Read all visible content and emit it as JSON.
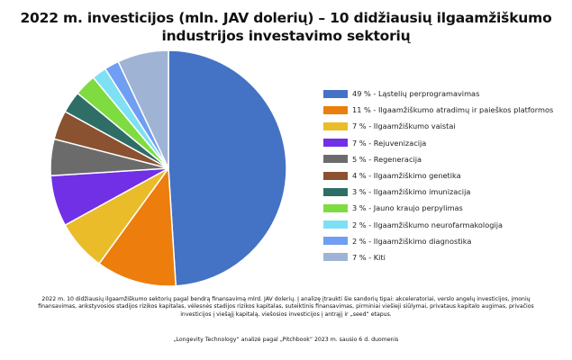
{
  "title_line1": "2022 m. investicijos (mln. JAV dolerių) – 10 didžiausių ilgaamžiškumo",
  "title_line2": "industrijos investavimo sektorių",
  "footnote": "2022 m. 10 didžiausių ilgaamžiškumo sektorių pagal bendrą finansavimą mlrd. JAV dolerių. Į analizę įtraukti šie sandorių tipai: akceleratoriai, verslo angelų investicijos, įmonių finansavimas, ankstyvosios stadijos rizikos kapitalas, vėlesnės stadijos rizikos kapitalas, suteiktinis finansavimas, pirminiai viešieji siūlymai, privataus kapitalo augimas, privačios investicijos į viešąjį kapitalą, viešosios investicijos į antrąjį ir „seed“ etapus.",
  "source": "„Longevity Technology“ analizė pagal „Pitchbook“ 2023 m. sausio 6 d. duomenis",
  "chart_data": {
    "type": "pie",
    "legend_position": "right",
    "slices": [
      {
        "label": "49 % - Ląstelių perprogramavimas",
        "value": 49,
        "color": "#4472c4"
      },
      {
        "label": "11 % - Ilgaamžiškumo atradimų ir paieškos platformos",
        "value": 11,
        "color": "#ed7d0c"
      },
      {
        "label": "7 % - Ilgaamžiškumo vaistai",
        "value": 7,
        "color": "#eabc2a"
      },
      {
        "label": "7 % - Rejuvenizacija",
        "value": 7,
        "color": "#7130e6"
      },
      {
        "label": "5 % - Regeneracija",
        "value": 5,
        "color": "#6b6b6b"
      },
      {
        "label": "4 % - Ilgaamžiškimo genetika",
        "value": 4,
        "color": "#8a5230"
      },
      {
        "label": "3 % - Ilgaamžiškimo imunizacija",
        "value": 3,
        "color": "#2e6e67"
      },
      {
        "label": "3 % - Jauno kraujo perpylimas",
        "value": 3,
        "color": "#7edc40"
      },
      {
        "label": "2 % - Ilgaamžiškumo neurofarmakologija",
        "value": 2,
        "color": "#7ee0f4"
      },
      {
        "label": "2 % - Ilgaamžiškimo diagnostika",
        "value": 2,
        "color": "#6f9ef2"
      },
      {
        "label": "7 % - Kiti",
        "value": 7,
        "color": "#9fb4d4"
      }
    ]
  }
}
